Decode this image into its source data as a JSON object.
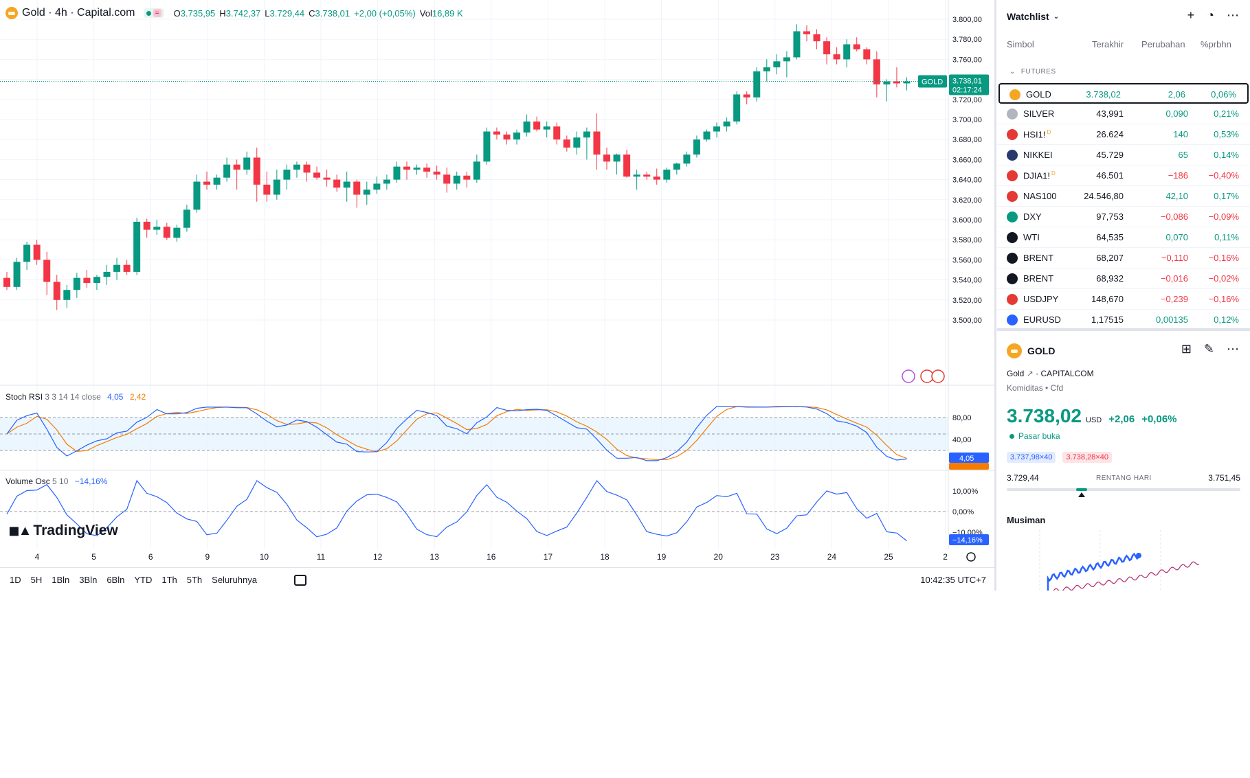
{
  "legend": {
    "title": "Gold · 4h · Capital.com",
    "ohlc": [
      {
        "k": "O",
        "v": "3.735,95"
      },
      {
        "k": "H",
        "v": "3.742,37"
      },
      {
        "k": "L",
        "v": "3.729,44"
      },
      {
        "k": "C",
        "v": "3.738,01"
      },
      {
        "k": "",
        "v": "+2,00 (+0,05%)"
      },
      {
        "k": "Vol",
        "v": "16,89 K"
      }
    ]
  },
  "price_axis": {
    "ticks": [
      "3.800,00",
      "3.780,00",
      "3.760,00",
      "3.740,00",
      "3.720,00",
      "3.700,00",
      "3.680,00",
      "3.660,00",
      "3.640,00",
      "3.620,00",
      "3.600,00",
      "3.580,00",
      "3.560,00",
      "3.540,00",
      "3.520,00",
      "3.500,00"
    ],
    "current_tag": "GOLD",
    "current_price": "3.738,01",
    "countdown": "02:17:24"
  },
  "time_axis": [
    "4",
    "5",
    "6",
    "9",
    "10",
    "11",
    "12",
    "13",
    "16",
    "17",
    "18",
    "19",
    "20",
    "23",
    "24",
    "25",
    "2"
  ],
  "indicators": {
    "stoch": {
      "name": "Stoch RSI",
      "params": "3 3 14 14 close",
      "k": "4,05",
      "d": "2,42",
      "ticks": [
        "80,00",
        "40,00"
      ],
      "k_tag": "4,05",
      "d_tag": "2,42"
    },
    "vol_osc": {
      "name": "Volume Osc",
      "params": "5 10",
      "value": "−14,16%",
      "ticks": [
        "10,00%",
        "0,00%",
        "−10,00%"
      ],
      "tag": "−14,16%"
    }
  },
  "logo": "TradingView",
  "bottom_bar": {
    "timeframes": [
      "1D",
      "5H",
      "1Bln",
      "3Bln",
      "6Bln",
      "YTD",
      "1Th",
      "5Th",
      "Seluruhnya"
    ],
    "clock": "10:42:35 UTC+7"
  },
  "watchlist": {
    "title": "Watchlist",
    "columns": {
      "symbol": "Simbol",
      "last": "Terakhir",
      "change": "Perubahan",
      "pct": "%prbhn"
    },
    "section": "FUTURES",
    "rows": [
      {
        "symbol": "GOLD",
        "sup": "",
        "last": "3.738,02",
        "chg": "2,06",
        "pct": "0,06%",
        "dir": "up",
        "icon_color": "#f5a623",
        "icon": "gold-icon",
        "active": true
      },
      {
        "symbol": "SILVER",
        "sup": "",
        "last": "43,991",
        "chg": "0,090",
        "pct": "0,21%",
        "dir": "up",
        "icon_color": "#b2b5be",
        "icon": "silver-icon",
        "active": false
      },
      {
        "symbol": "HSI1!",
        "sup": "D",
        "last": "26.624",
        "chg": "140",
        "pct": "0,53%",
        "dir": "up",
        "icon_color": "#e53935",
        "icon": "hsi-icon",
        "active": false
      },
      {
        "symbol": "NIKKEI",
        "sup": "",
        "last": "45.729",
        "chg": "65",
        "pct": "0,14%",
        "dir": "up",
        "icon_color": "#2a3a6e",
        "icon": "nikkei-icon",
        "active": false
      },
      {
        "symbol": "DJIA1!",
        "sup": "D",
        "last": "46.501",
        "chg": "−186",
        "pct": "−0,40%",
        "dir": "dn",
        "icon_color": "#e53935",
        "icon": "us-flag-icon",
        "active": false
      },
      {
        "symbol": "NAS100",
        "sup": "",
        "last": "24.546,80",
        "chg": "42,10",
        "pct": "0,17%",
        "dir": "up",
        "icon_color": "#e53935",
        "icon": "us-flag-icon",
        "active": false
      },
      {
        "symbol": "DXY",
        "sup": "",
        "last": "97,753",
        "chg": "−0,086",
        "pct": "−0,09%",
        "dir": "dn",
        "icon_color": "#089981",
        "icon": "dollar-icon",
        "active": false
      },
      {
        "symbol": "WTI",
        "sup": "",
        "last": "64,535",
        "chg": "0,070",
        "pct": "0,11%",
        "dir": "up",
        "icon_color": "#131722",
        "icon": "oil-drop-icon",
        "active": false
      },
      {
        "symbol": "BRENT",
        "sup": "",
        "last": "68,207",
        "chg": "−0,110",
        "pct": "−0,16%",
        "dir": "dn",
        "icon_color": "#131722",
        "icon": "oil-drop-icon",
        "active": false
      },
      {
        "symbol": "BRENT",
        "sup": "",
        "last": "68,932",
        "chg": "−0,016",
        "pct": "−0,02%",
        "dir": "dn",
        "icon_color": "#131722",
        "icon": "oil-drop-icon",
        "active": false
      },
      {
        "symbol": "USDJPY",
        "sup": "",
        "last": "148,670",
        "chg": "−0,239",
        "pct": "−0,16%",
        "dir": "dn",
        "icon_color": "#e53935",
        "icon": "us-jp-flag-icon",
        "active": false
      },
      {
        "symbol": "EURUSD",
        "sup": "",
        "last": "1,17515",
        "chg": "0,00135",
        "pct": "0,12%",
        "dir": "up",
        "icon_color": "#2962ff",
        "icon": "eu-us-flag-icon",
        "active": false
      }
    ]
  },
  "detail": {
    "symbol": "GOLD",
    "name": "Gold",
    "exchange": "CAPITALCOM",
    "category": "Komiditas • Cfd",
    "price": "3.738,02",
    "currency": "USD",
    "change": "+2,06",
    "change_pct": "+0,06%",
    "status": "Pasar buka",
    "bid": "3.737,98×40",
    "ask": "3.738,28×40",
    "day_low": "3.729,44",
    "day_high": "3.751,45",
    "range_label": "RENTANG HARI",
    "day_position": 0.32,
    "seasonal_title": "Musiman"
  },
  "colors": {
    "up": "#089981",
    "down": "#f23645",
    "blue": "#2962ff",
    "orange": "#f57c00",
    "grid": "#f0f3fa"
  },
  "chart_data": {
    "type": "candlestick",
    "title": "Gold · 4h · Capital.com",
    "y_range": [
      3500,
      3800
    ],
    "candles": [
      [
        3542,
        3548,
        3530,
        3533
      ],
      [
        3533,
        3562,
        3530,
        3558
      ],
      [
        3558,
        3578,
        3550,
        3575
      ],
      [
        3575,
        3580,
        3555,
        3560
      ],
      [
        3560,
        3568,
        3525,
        3538
      ],
      [
        3538,
        3545,
        3510,
        3520
      ],
      [
        3520,
        3535,
        3512,
        3530
      ],
      [
        3530,
        3547,
        3522,
        3542
      ],
      [
        3542,
        3550,
        3532,
        3537
      ],
      [
        3537,
        3545,
        3530,
        3543
      ],
      [
        3543,
        3555,
        3535,
        3548
      ],
      [
        3548,
        3562,
        3540,
        3555
      ],
      [
        3555,
        3560,
        3545,
        3548
      ],
      [
        3548,
        3602,
        3545,
        3598
      ],
      [
        3598,
        3601,
        3582,
        3590
      ],
      [
        3590,
        3600,
        3585,
        3593
      ],
      [
        3593,
        3597,
        3580,
        3582
      ],
      [
        3582,
        3595,
        3578,
        3592
      ],
      [
        3592,
        3615,
        3588,
        3610
      ],
      [
        3610,
        3645,
        3607,
        3638
      ],
      [
        3638,
        3648,
        3630,
        3635
      ],
      [
        3635,
        3645,
        3630,
        3642
      ],
      [
        3642,
        3662,
        3638,
        3655
      ],
      [
        3655,
        3660,
        3630,
        3650
      ],
      [
        3650,
        3668,
        3645,
        3662
      ],
      [
        3662,
        3672,
        3618,
        3635
      ],
      [
        3635,
        3648,
        3618,
        3625
      ],
      [
        3625,
        3650,
        3620,
        3640
      ],
      [
        3640,
        3655,
        3630,
        3650
      ],
      [
        3650,
        3658,
        3642,
        3655
      ],
      [
        3655,
        3658,
        3638,
        3647
      ],
      [
        3647,
        3653,
        3640,
        3642
      ],
      [
        3642,
        3650,
        3633,
        3640
      ],
      [
        3640,
        3645,
        3628,
        3632
      ],
      [
        3632,
        3648,
        3618,
        3638
      ],
      [
        3638,
        3640,
        3612,
        3625
      ],
      [
        3625,
        3638,
        3615,
        3630
      ],
      [
        3630,
        3643,
        3626,
        3636
      ],
      [
        3636,
        3645,
        3630,
        3640
      ],
      [
        3640,
        3658,
        3637,
        3653
      ],
      [
        3653,
        3658,
        3640,
        3650
      ],
      [
        3650,
        3655,
        3645,
        3652
      ],
      [
        3652,
        3656,
        3642,
        3648
      ],
      [
        3648,
        3654,
        3640,
        3645
      ],
      [
        3645,
        3652,
        3627,
        3636
      ],
      [
        3636,
        3648,
        3630,
        3644
      ],
      [
        3644,
        3648,
        3632,
        3640
      ],
      [
        3640,
        3665,
        3637,
        3658
      ],
      [
        3658,
        3692,
        3655,
        3688
      ],
      [
        3688,
        3692,
        3680,
        3685
      ],
      [
        3685,
        3688,
        3675,
        3680
      ],
      [
        3680,
        3690,
        3675,
        3687
      ],
      [
        3687,
        3705,
        3683,
        3698
      ],
      [
        3698,
        3703,
        3688,
        3690
      ],
      [
        3690,
        3698,
        3682,
        3693
      ],
      [
        3693,
        3697,
        3675,
        3680
      ],
      [
        3680,
        3684,
        3668,
        3672
      ],
      [
        3672,
        3688,
        3665,
        3682
      ],
      [
        3682,
        3692,
        3660,
        3688
      ],
      [
        3688,
        3706,
        3650,
        3665
      ],
      [
        3665,
        3672,
        3650,
        3658
      ],
      [
        3658,
        3666,
        3645,
        3665
      ],
      [
        3665,
        3670,
        3642,
        3643
      ],
      [
        3643,
        3650,
        3630,
        3645
      ],
      [
        3645,
        3648,
        3640,
        3643
      ],
      [
        3643,
        3651,
        3635,
        3640
      ],
      [
        3640,
        3652,
        3637,
        3650
      ],
      [
        3650,
        3657,
        3645,
        3656
      ],
      [
        3656,
        3668,
        3653,
        3665
      ],
      [
        3665,
        3684,
        3662,
        3680
      ],
      [
        3680,
        3690,
        3678,
        3688
      ],
      [
        3688,
        3697,
        3682,
        3693
      ],
      [
        3693,
        3702,
        3688,
        3698
      ],
      [
        3698,
        3728,
        3695,
        3725
      ],
      [
        3725,
        3728,
        3715,
        3722
      ],
      [
        3722,
        3752,
        3718,
        3748
      ],
      [
        3748,
        3760,
        3738,
        3752
      ],
      [
        3752,
        3765,
        3745,
        3758
      ],
      [
        3758,
        3768,
        3742,
        3762
      ],
      [
        3762,
        3795,
        3760,
        3788
      ],
      [
        3788,
        3794,
        3778,
        3785
      ],
      [
        3785,
        3790,
        3770,
        3778
      ],
      [
        3778,
        3782,
        3755,
        3765
      ],
      [
        3765,
        3772,
        3755,
        3760
      ],
      [
        3760,
        3780,
        3752,
        3775
      ],
      [
        3775,
        3782,
        3768,
        3770
      ],
      [
        3770,
        3772,
        3755,
        3760
      ],
      [
        3760,
        3768,
        3722,
        3735
      ],
      [
        3735,
        3740,
        3718,
        3738
      ],
      [
        3738,
        3752,
        3732,
        3736
      ],
      [
        3736,
        3742,
        3729,
        3738
      ]
    ],
    "x_ticks": [
      "4",
      "5",
      "6",
      "9",
      "10",
      "11",
      "12",
      "13",
      "16",
      "17",
      "18",
      "19",
      "20",
      "23",
      "24",
      "25",
      "2"
    ]
  }
}
